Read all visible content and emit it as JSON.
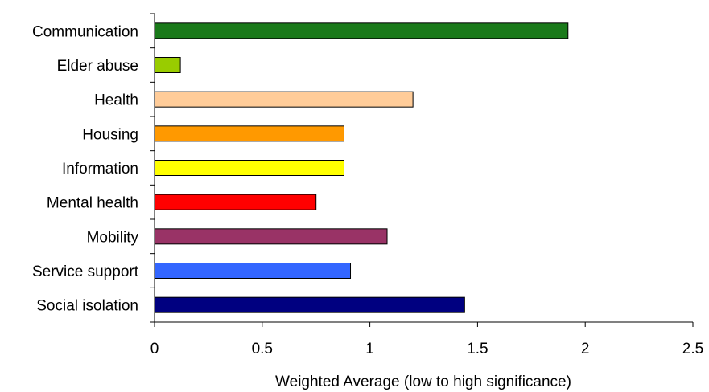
{
  "chart_data": {
    "type": "bar",
    "orientation": "horizontal",
    "categories": [
      "Communication",
      "Elder abuse",
      "Health",
      "Housing",
      "Information",
      "Mental health",
      "Mobility",
      "Service support",
      "Social isolation"
    ],
    "values": [
      1.92,
      0.12,
      1.2,
      0.88,
      0.88,
      0.75,
      1.08,
      0.91,
      1.44
    ],
    "colors": [
      "#1a7a1a",
      "#99cc00",
      "#ffcc99",
      "#ff9900",
      "#ffff00",
      "#ff0000",
      "#993366",
      "#3366ff",
      "#000080"
    ],
    "title": "",
    "xlabel": "Weighted Average (low to high significance)",
    "ylabel": "",
    "xlim": [
      0,
      2.5
    ],
    "xticks": [
      0,
      0.5,
      1,
      1.5,
      2,
      2.5
    ],
    "xtick_labels": [
      "0",
      "0.5",
      "1",
      "1.5",
      "2",
      "2.5"
    ],
    "grid": false,
    "legend": "none"
  }
}
